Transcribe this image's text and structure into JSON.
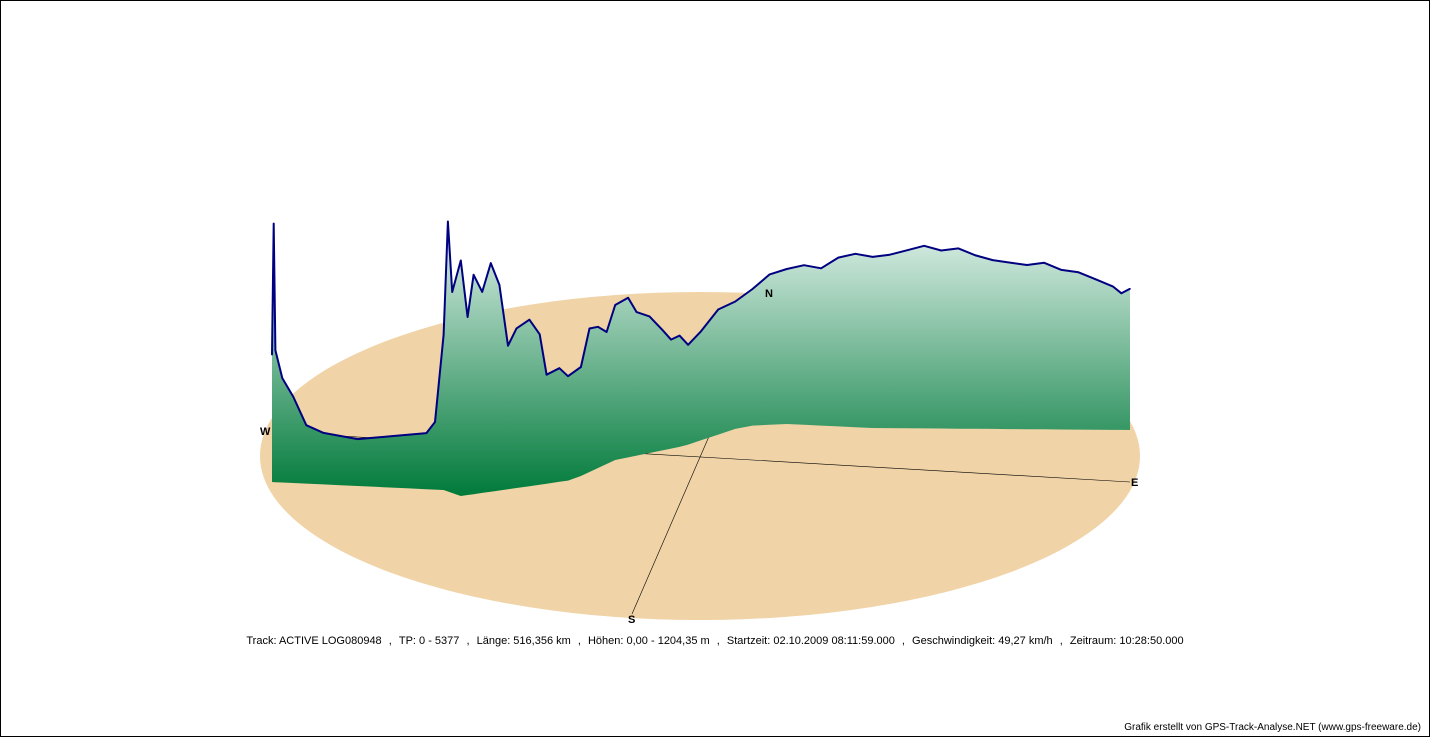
{
  "chart_data": {
    "type": "area",
    "title": "",
    "xlabel": "",
    "ylabel": "",
    "compass": {
      "north": "N",
      "south": "S",
      "east": "E",
      "west": "W"
    },
    "colors": {
      "ground": "#f0d3a6",
      "profile_line": "#000080",
      "fill_top": "#e2f2ec",
      "fill_bottom": "#007a3a",
      "axis": "#000000"
    },
    "elevation_range_m": [
      0,
      1204.35
    ],
    "profile": [
      [
        0.0,
        0.38
      ],
      [
        0.002,
        0.95
      ],
      [
        0.004,
        0.4
      ],
      [
        0.012,
        0.28
      ],
      [
        0.025,
        0.2
      ],
      [
        0.04,
        0.08
      ],
      [
        0.06,
        0.05
      ],
      [
        0.08,
        0.04
      ],
      [
        0.1,
        0.03
      ],
      [
        0.12,
        0.04
      ],
      [
        0.14,
        0.05
      ],
      [
        0.16,
        0.06
      ],
      [
        0.18,
        0.07
      ],
      [
        0.19,
        0.12
      ],
      [
        0.2,
        0.5
      ],
      [
        0.205,
        1.0
      ],
      [
        0.21,
        0.7
      ],
      [
        0.22,
        0.85
      ],
      [
        0.228,
        0.6
      ],
      [
        0.235,
        0.78
      ],
      [
        0.245,
        0.7
      ],
      [
        0.255,
        0.82
      ],
      [
        0.265,
        0.72
      ],
      [
        0.275,
        0.45
      ],
      [
        0.285,
        0.52
      ],
      [
        0.3,
        0.55
      ],
      [
        0.312,
        0.48
      ],
      [
        0.32,
        0.3
      ],
      [
        0.335,
        0.32
      ],
      [
        0.345,
        0.28
      ],
      [
        0.36,
        0.3
      ],
      [
        0.37,
        0.45
      ],
      [
        0.38,
        0.44
      ],
      [
        0.39,
        0.4
      ],
      [
        0.4,
        0.5
      ],
      [
        0.415,
        0.52
      ],
      [
        0.425,
        0.45
      ],
      [
        0.44,
        0.42
      ],
      [
        0.455,
        0.35
      ],
      [
        0.465,
        0.3
      ],
      [
        0.475,
        0.31
      ],
      [
        0.485,
        0.26
      ],
      [
        0.5,
        0.3
      ],
      [
        0.52,
        0.37
      ],
      [
        0.54,
        0.38
      ],
      [
        0.56,
        0.42
      ],
      [
        0.58,
        0.48
      ],
      [
        0.6,
        0.5
      ],
      [
        0.62,
        0.52
      ],
      [
        0.64,
        0.51
      ],
      [
        0.66,
        0.56
      ],
      [
        0.68,
        0.58
      ],
      [
        0.7,
        0.57
      ],
      [
        0.72,
        0.58
      ],
      [
        0.74,
        0.6
      ],
      [
        0.76,
        0.62
      ],
      [
        0.78,
        0.6
      ],
      [
        0.8,
        0.61
      ],
      [
        0.82,
        0.58
      ],
      [
        0.84,
        0.56
      ],
      [
        0.86,
        0.55
      ],
      [
        0.88,
        0.54
      ],
      [
        0.9,
        0.55
      ],
      [
        0.92,
        0.52
      ],
      [
        0.94,
        0.51
      ],
      [
        0.96,
        0.48
      ],
      [
        0.98,
        0.45
      ],
      [
        0.99,
        0.42
      ],
      [
        1.0,
        0.44
      ]
    ]
  },
  "info": {
    "track": "Track: ACTIVE LOG080948",
    "tp": "TP: 0 - 5377",
    "laenge": "Länge: 516,356 km",
    "hoehen": "Höhen: 0,00 - 1204,35 m",
    "startzeit": "Startzeit: 02.10.2009 08:11:59.000",
    "geschwindigkeit": "Geschwindigkeit: 49,27 km/h",
    "zeitraum": "Zeitraum: 10:28:50.000",
    "separator": ","
  },
  "credit": "Grafik erstellt von GPS-Track-Analyse.NET (www.gps-freeware.de)"
}
